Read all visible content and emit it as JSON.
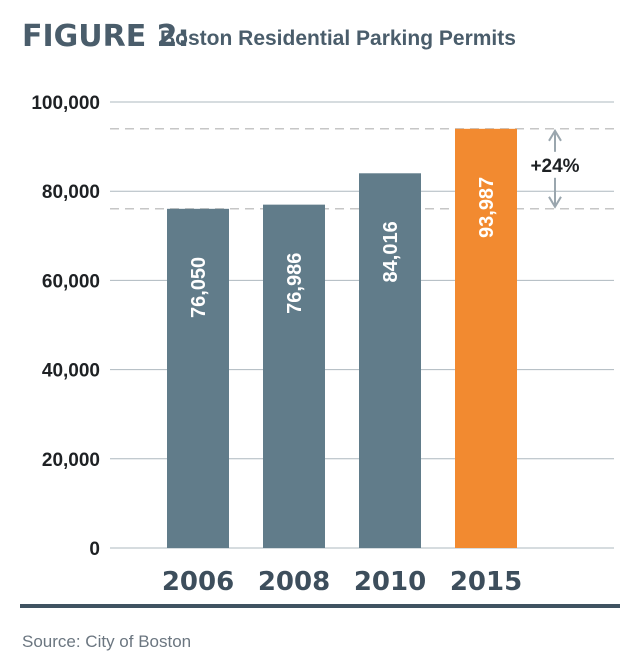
{
  "title": {
    "prefix": "FIGURE 2:",
    "text": "Boston Residential Parking Permits"
  },
  "source": "Source: City of Boston",
  "colors": {
    "default_bar": "#617c8a",
    "highlight_bar": "#f28a30",
    "grid": "#aeb8bf",
    "dashed": "#b3b3b3",
    "axis_bottom": "#3f5361",
    "arrow": "#9aa6ae"
  },
  "chart_data": {
    "type": "bar",
    "categories": [
      "2006",
      "2008",
      "2010",
      "2015"
    ],
    "values": [
      76050,
      76986,
      84016,
      93987
    ],
    "value_labels": [
      "76,050",
      "76,986",
      "84,016",
      "93,987"
    ],
    "highlight_index": 3,
    "ylim": [
      0,
      100000
    ],
    "yticks": [
      0,
      20000,
      40000,
      60000,
      80000,
      100000
    ],
    "ytick_labels": [
      "0",
      "20,000",
      "40,000",
      "60,000",
      "80,000",
      "100,000"
    ],
    "xlabel": "",
    "ylabel": "",
    "grid": true,
    "annotation": {
      "text": "+24%",
      "from": 76050,
      "to": 93987
    }
  }
}
